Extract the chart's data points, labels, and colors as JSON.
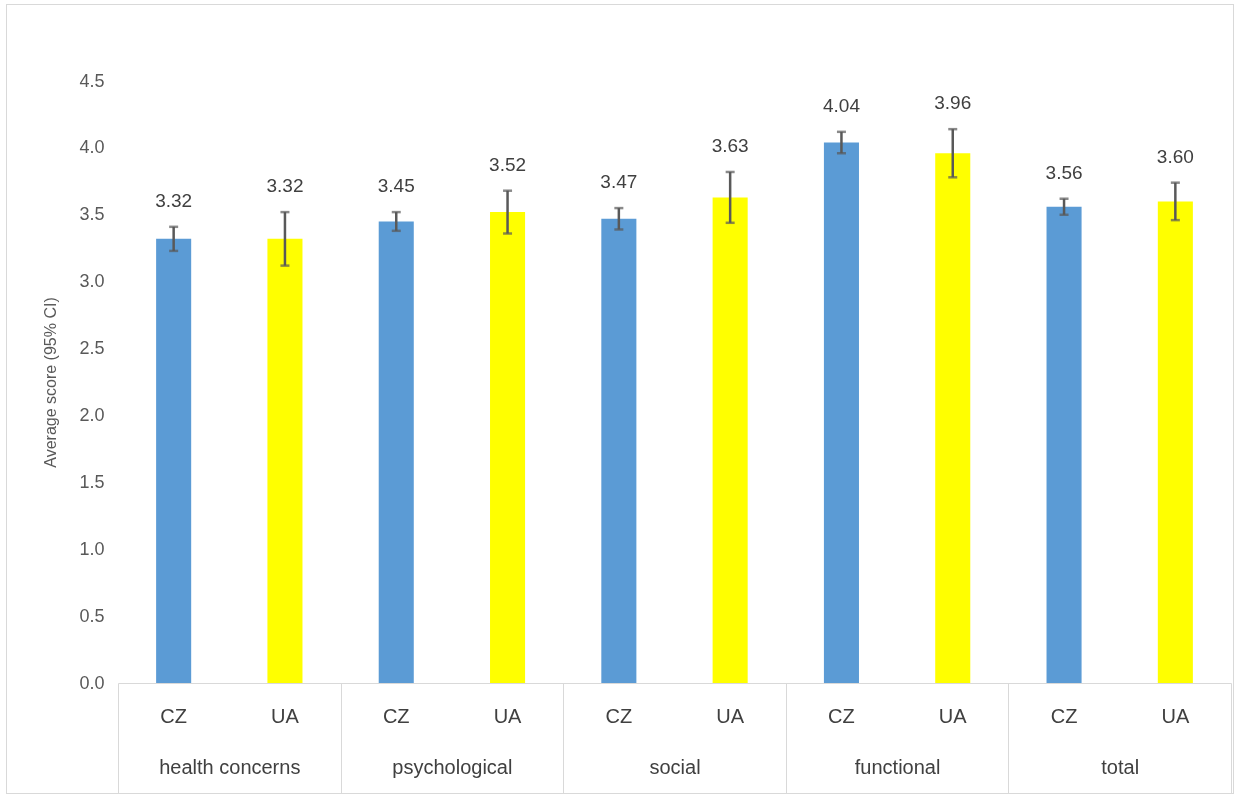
{
  "chart_data": {
    "type": "bar",
    "ylabel": "Average score (95% CI)",
    "categories": [
      "health concerns",
      "psychological",
      "social",
      "functional",
      "total"
    ],
    "series": [
      {
        "name": "CZ",
        "color": "#5b9bd5",
        "values": [
          3.32,
          3.45,
          3.47,
          4.04,
          3.56
        ],
        "errors": [
          0.09,
          0.07,
          0.08,
          0.08,
          0.06
        ],
        "value_labels": [
          "3.32",
          "3.45",
          "3.47",
          "4.04",
          "3.56"
        ]
      },
      {
        "name": "UA",
        "color": "#ffff00",
        "values": [
          3.32,
          3.52,
          3.63,
          3.96,
          3.6
        ],
        "errors": [
          0.2,
          0.16,
          0.19,
          0.18,
          0.14
        ],
        "value_labels": [
          "3.32",
          "3.52",
          "3.63",
          "3.96",
          "3.60"
        ]
      }
    ],
    "ylim": [
      0,
      4.5
    ],
    "yticks": [
      {
        "value": 0,
        "label": "0.0"
      },
      {
        "value": 0.5,
        "label": "0.5"
      },
      {
        "value": 1,
        "label": "1.0"
      },
      {
        "value": 1.5,
        "label": "1.5"
      },
      {
        "value": 2,
        "label": "2.0"
      },
      {
        "value": 2.5,
        "label": "2.5"
      },
      {
        "value": 3,
        "label": "3.0"
      },
      {
        "value": 3.5,
        "label": "3.5"
      },
      {
        "value": 4,
        "label": "4.0"
      },
      {
        "value": 4.5,
        "label": "4.5"
      }
    ],
    "grid": false
  }
}
